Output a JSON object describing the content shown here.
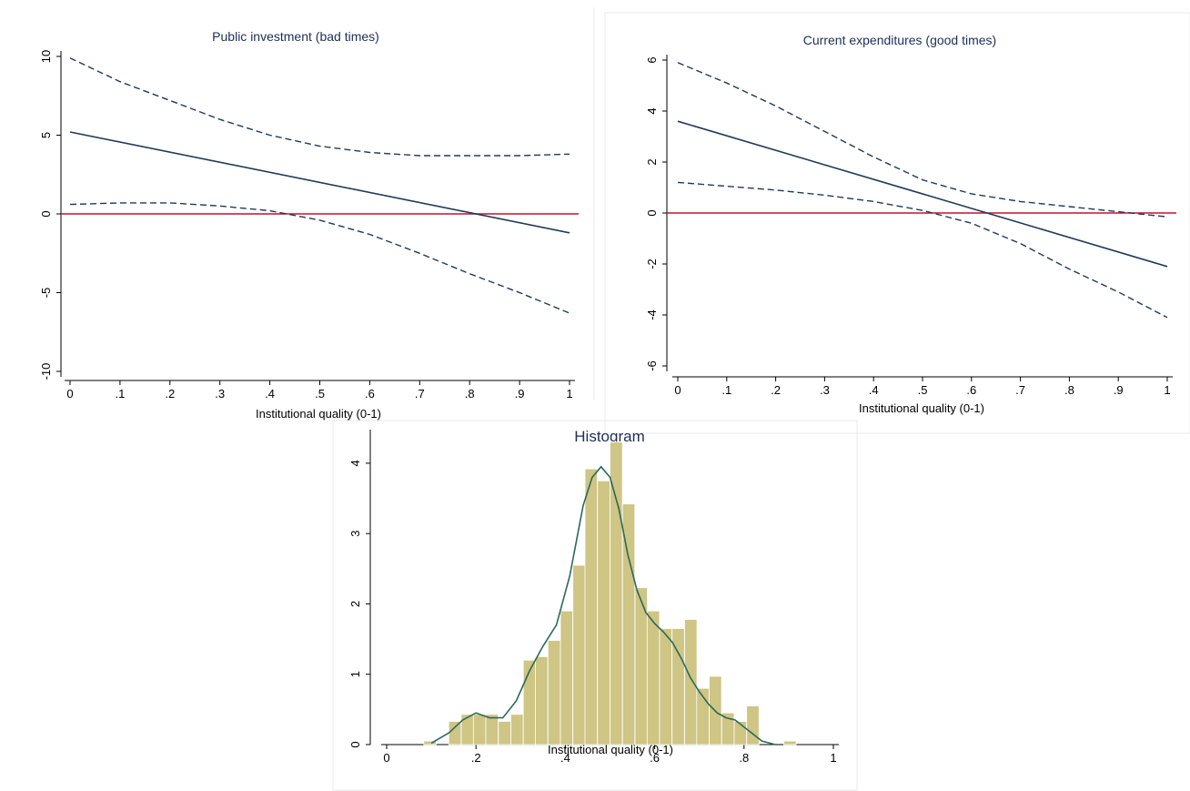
{
  "chart_data": [
    {
      "id": "public-investment",
      "type": "line",
      "title": "Public investment (bad times)",
      "xlabel": "Institutional quality (0-1)",
      "ylabel": "",
      "xlim": [
        0,
        1
      ],
      "ylim": [
        -10,
        10
      ],
      "xticks": [
        "0",
        ".1",
        ".2",
        ".3",
        ".4",
        ".5",
        ".6",
        ".7",
        ".8",
        ".9",
        "1"
      ],
      "yticks": [
        "-10",
        "-5",
        "0",
        "5",
        "10"
      ],
      "reference_line": 0,
      "series": [
        {
          "role": "estimate",
          "style": "solid",
          "x": [
            0,
            1
          ],
          "y": [
            5.2,
            -1.2
          ]
        },
        {
          "role": "upper",
          "style": "dashed",
          "x": [
            0,
            0.1,
            0.2,
            0.3,
            0.4,
            0.5,
            0.6,
            0.7,
            0.8,
            0.9,
            1.0
          ],
          "y": [
            9.9,
            8.4,
            7.2,
            6.0,
            5.0,
            4.3,
            3.9,
            3.7,
            3.7,
            3.7,
            3.8
          ]
        },
        {
          "role": "lower",
          "style": "dashed",
          "x": [
            0,
            0.1,
            0.2,
            0.3,
            0.4,
            0.5,
            0.6,
            0.7,
            0.8,
            0.9,
            1.0
          ],
          "y": [
            0.6,
            0.7,
            0.7,
            0.5,
            0.2,
            -0.4,
            -1.3,
            -2.5,
            -3.8,
            -5.0,
            -6.3
          ]
        }
      ]
    },
    {
      "id": "current-expenditures",
      "type": "line",
      "title": "Current expenditures (good times)",
      "xlabel": "Institutional quality (0-1)",
      "ylabel": "",
      "xlim": [
        0,
        1
      ],
      "ylim": [
        -6,
        6
      ],
      "xticks": [
        "0",
        ".1",
        ".2",
        ".3",
        ".4",
        ".5",
        ".6",
        ".7",
        ".8",
        ".9",
        "1"
      ],
      "yticks": [
        "-6",
        "-4",
        "-2",
        "0",
        "2",
        "4",
        "6"
      ],
      "reference_line": 0,
      "series": [
        {
          "role": "estimate",
          "style": "solid",
          "x": [
            0,
            1
          ],
          "y": [
            3.6,
            -2.1
          ]
        },
        {
          "role": "upper",
          "style": "dashed",
          "x": [
            0,
            0.1,
            0.2,
            0.3,
            0.4,
            0.5,
            0.6,
            0.7,
            0.8,
            0.9,
            1.0
          ],
          "y": [
            5.9,
            5.1,
            4.2,
            3.2,
            2.2,
            1.3,
            0.75,
            0.45,
            0.25,
            0.05,
            -0.15
          ]
        },
        {
          "role": "lower",
          "style": "dashed",
          "x": [
            0,
            0.1,
            0.2,
            0.3,
            0.4,
            0.5,
            0.6,
            0.7,
            0.8,
            0.9,
            1.0
          ],
          "y": [
            1.2,
            1.05,
            0.9,
            0.7,
            0.45,
            0.1,
            -0.4,
            -1.2,
            -2.2,
            -3.1,
            -4.1
          ]
        }
      ]
    },
    {
      "id": "histogram",
      "type": "bar",
      "title": "Histogram",
      "xlabel": "Institutional quality (0-1)",
      "ylabel": "",
      "xlim": [
        0,
        1
      ],
      "ylim": [
        0,
        4.4
      ],
      "xticks": [
        "0",
        ".2",
        ".4",
        ".6",
        ".8",
        "1"
      ],
      "yticks": [
        "0",
        "1",
        "2",
        "3",
        "4"
      ],
      "bin_width": 0.0278,
      "bin_starts": [
        0.083,
        0.139,
        0.167,
        0.194,
        0.222,
        0.25,
        0.278,
        0.306,
        0.333,
        0.361,
        0.389,
        0.417,
        0.444,
        0.472,
        0.5,
        0.528,
        0.556,
        0.583,
        0.611,
        0.639,
        0.667,
        0.694,
        0.722,
        0.75,
        0.778,
        0.806,
        0.889
      ],
      "values": [
        0.05,
        0.33,
        0.43,
        0.43,
        0.43,
        0.33,
        0.43,
        1.2,
        1.25,
        1.48,
        1.9,
        2.55,
        3.92,
        3.75,
        4.3,
        3.42,
        2.23,
        1.9,
        1.65,
        1.65,
        1.78,
        0.8,
        0.97,
        0.45,
        0.33,
        0.55,
        0.05
      ],
      "density": {
        "x": [
          0.1,
          0.14,
          0.17,
          0.2,
          0.23,
          0.26,
          0.29,
          0.32,
          0.35,
          0.38,
          0.41,
          0.44,
          0.46,
          0.48,
          0.5,
          0.52,
          0.54,
          0.56,
          0.58,
          0.6,
          0.62,
          0.64,
          0.66,
          0.68,
          0.7,
          0.72,
          0.74,
          0.76,
          0.78,
          0.81,
          0.84,
          0.87
        ],
        "y": [
          0.02,
          0.17,
          0.35,
          0.45,
          0.38,
          0.38,
          0.62,
          1.05,
          1.4,
          1.7,
          2.4,
          3.4,
          3.8,
          3.95,
          3.8,
          3.35,
          2.7,
          2.2,
          1.88,
          1.72,
          1.6,
          1.45,
          1.22,
          0.95,
          0.75,
          0.58,
          0.45,
          0.38,
          0.35,
          0.2,
          0.05,
          0.0
        ]
      }
    }
  ]
}
